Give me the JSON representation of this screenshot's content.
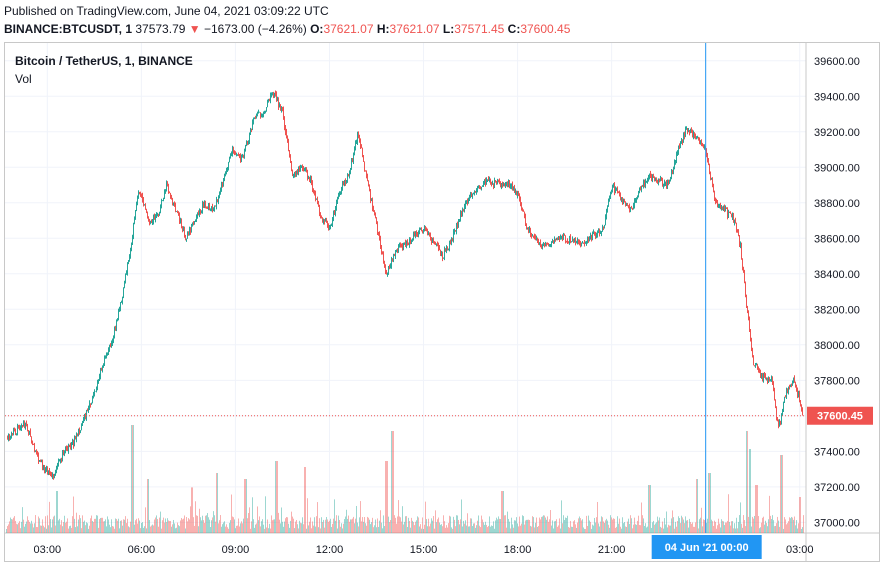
{
  "header": {
    "published": "Published on TradingView.com, June 04, 2021 03:09:22 UTC",
    "symbol": "BINANCE:BTCUSDT, 1",
    "price": "37573.79",
    "change": "−1673.00 (−4.26%)",
    "o_label": "O:",
    "o_value": "37621.07",
    "h_label": "H:",
    "h_value": "37621.07",
    "l_label": "L:",
    "l_value": "37571.45",
    "c_label": "C:",
    "c_value": "37600.45",
    "down_arrow_icon": "triangle-down-icon"
  },
  "legend": {
    "title": "Bitcoin / TetherUS, 1, BINANCE",
    "volume": "Vol"
  },
  "crosshair_label": "04 Jun '21   00:00",
  "last_price_label": "37600.45",
  "colors": {
    "up": "#26a69a",
    "down": "#ef5350",
    "crosshair": "#2196f3",
    "label_bg": "#2196f3",
    "last_price_bg": "#ef5350",
    "grid": "#f0f3fa"
  },
  "chart_data": {
    "type": "candlestick",
    "title": "Bitcoin / TetherUS, 1, BINANCE",
    "x_unit": "hours (UTC), 03 Jun 2021 01:40 to 04 Jun 2021 03:09",
    "y_ticks": [
      37000,
      37200,
      37400,
      37600,
      37800,
      38000,
      38200,
      38400,
      38600,
      38800,
      39000,
      39200,
      39400,
      39600
    ],
    "y_tick_labels": [
      "37000.00",
      "37200.00",
      "37400.00",
      "37600.00",
      "37800.00",
      "38000.00",
      "38200.00",
      "38400.00",
      "38600.00",
      "38800.00",
      "39000.00",
      "39200.00",
      "39400.00",
      "39600.00"
    ],
    "ylim": [
      36940,
      39700
    ],
    "x_ticks": [
      3,
      6,
      9,
      12,
      15,
      18,
      21,
      27
    ],
    "x_tick_labels": [
      "03:00",
      "06:00",
      "09:00",
      "12:00",
      "15:00",
      "18:00",
      "21:00",
      "03:00"
    ],
    "xlim": [
      1.65,
      27.2
    ],
    "crosshair_x": 24,
    "last_price": 37600.45,
    "grid": true,
    "price_path": [
      [
        1.7,
        37480
      ],
      [
        2.0,
        37520
      ],
      [
        2.3,
        37560
      ],
      [
        2.6,
        37400
      ],
      [
        2.9,
        37300
      ],
      [
        3.2,
        37260
      ],
      [
        3.5,
        37400
      ],
      [
        3.8,
        37440
      ],
      [
        4.1,
        37560
      ],
      [
        4.4,
        37680
      ],
      [
        4.7,
        37860
      ],
      [
        5.0,
        38000
      ],
      [
        5.3,
        38200
      ],
      [
        5.6,
        38500
      ],
      [
        5.9,
        38880
      ],
      [
        6.2,
        38700
      ],
      [
        6.5,
        38720
      ],
      [
        6.8,
        38900
      ],
      [
        7.1,
        38750
      ],
      [
        7.4,
        38600
      ],
      [
        7.7,
        38700
      ],
      [
        8.0,
        38800
      ],
      [
        8.3,
        38760
      ],
      [
        8.6,
        38920
      ],
      [
        8.9,
        39100
      ],
      [
        9.2,
        39050
      ],
      [
        9.6,
        39280
      ],
      [
        9.9,
        39320
      ],
      [
        10.2,
        39420
      ],
      [
        10.5,
        39300
      ],
      [
        10.8,
        38960
      ],
      [
        11.1,
        39000
      ],
      [
        11.4,
        38920
      ],
      [
        11.7,
        38730
      ],
      [
        12.0,
        38650
      ],
      [
        12.3,
        38860
      ],
      [
        12.6,
        38950
      ],
      [
        12.9,
        39200
      ],
      [
        13.2,
        38900
      ],
      [
        13.5,
        38660
      ],
      [
        13.8,
        38400
      ],
      [
        14.1,
        38530
      ],
      [
        14.4,
        38560
      ],
      [
        14.7,
        38620
      ],
      [
        15.0,
        38660
      ],
      [
        15.3,
        38580
      ],
      [
        15.6,
        38500
      ],
      [
        15.9,
        38600
      ],
      [
        16.2,
        38750
      ],
      [
        16.5,
        38850
      ],
      [
        16.8,
        38900
      ],
      [
        17.1,
        38920
      ],
      [
        17.4,
        38900
      ],
      [
        17.7,
        38900
      ],
      [
        18.0,
        38850
      ],
      [
        18.3,
        38650
      ],
      [
        18.6,
        38580
      ],
      [
        18.9,
        38560
      ],
      [
        19.2,
        38600
      ],
      [
        19.5,
        38600
      ],
      [
        19.8,
        38580
      ],
      [
        20.1,
        38560
      ],
      [
        20.4,
        38620
      ],
      [
        20.7,
        38640
      ],
      [
        21.0,
        38900
      ],
      [
        21.3,
        38820
      ],
      [
        21.6,
        38760
      ],
      [
        21.9,
        38880
      ],
      [
        22.2,
        38950
      ],
      [
        22.5,
        38920
      ],
      [
        22.8,
        38900
      ],
      [
        23.1,
        39100
      ],
      [
        23.4,
        39220
      ],
      [
        23.7,
        39160
      ],
      [
        24.0,
        39080
      ],
      [
        24.3,
        38800
      ],
      [
        24.6,
        38760
      ],
      [
        24.9,
        38700
      ],
      [
        25.1,
        38550
      ],
      [
        25.3,
        38200
      ],
      [
        25.5,
        37900
      ],
      [
        25.8,
        37820
      ],
      [
        26.1,
        37800
      ],
      [
        26.3,
        37520
      ],
      [
        26.55,
        37740
      ],
      [
        26.8,
        37800
      ],
      [
        27.05,
        37640
      ],
      [
        27.15,
        37600
      ]
    ],
    "volume_spikes": [
      [
        3.3,
        0.35
      ],
      [
        5.7,
        0.9
      ],
      [
        6.2,
        0.45
      ],
      [
        7.6,
        0.38
      ],
      [
        8.4,
        0.5
      ],
      [
        9.3,
        0.45
      ],
      [
        10.3,
        0.6
      ],
      [
        11.2,
        0.55
      ],
      [
        13.8,
        0.6
      ],
      [
        14.0,
        0.85
      ],
      [
        17.5,
        0.35
      ],
      [
        22.2,
        0.4
      ],
      [
        23.7,
        0.45
      ],
      [
        24.1,
        0.5
      ],
      [
        25.3,
        0.85
      ],
      [
        25.4,
        0.7
      ],
      [
        25.6,
        0.4
      ],
      [
        26.4,
        0.65
      ],
      [
        27.0,
        0.3
      ]
    ]
  }
}
